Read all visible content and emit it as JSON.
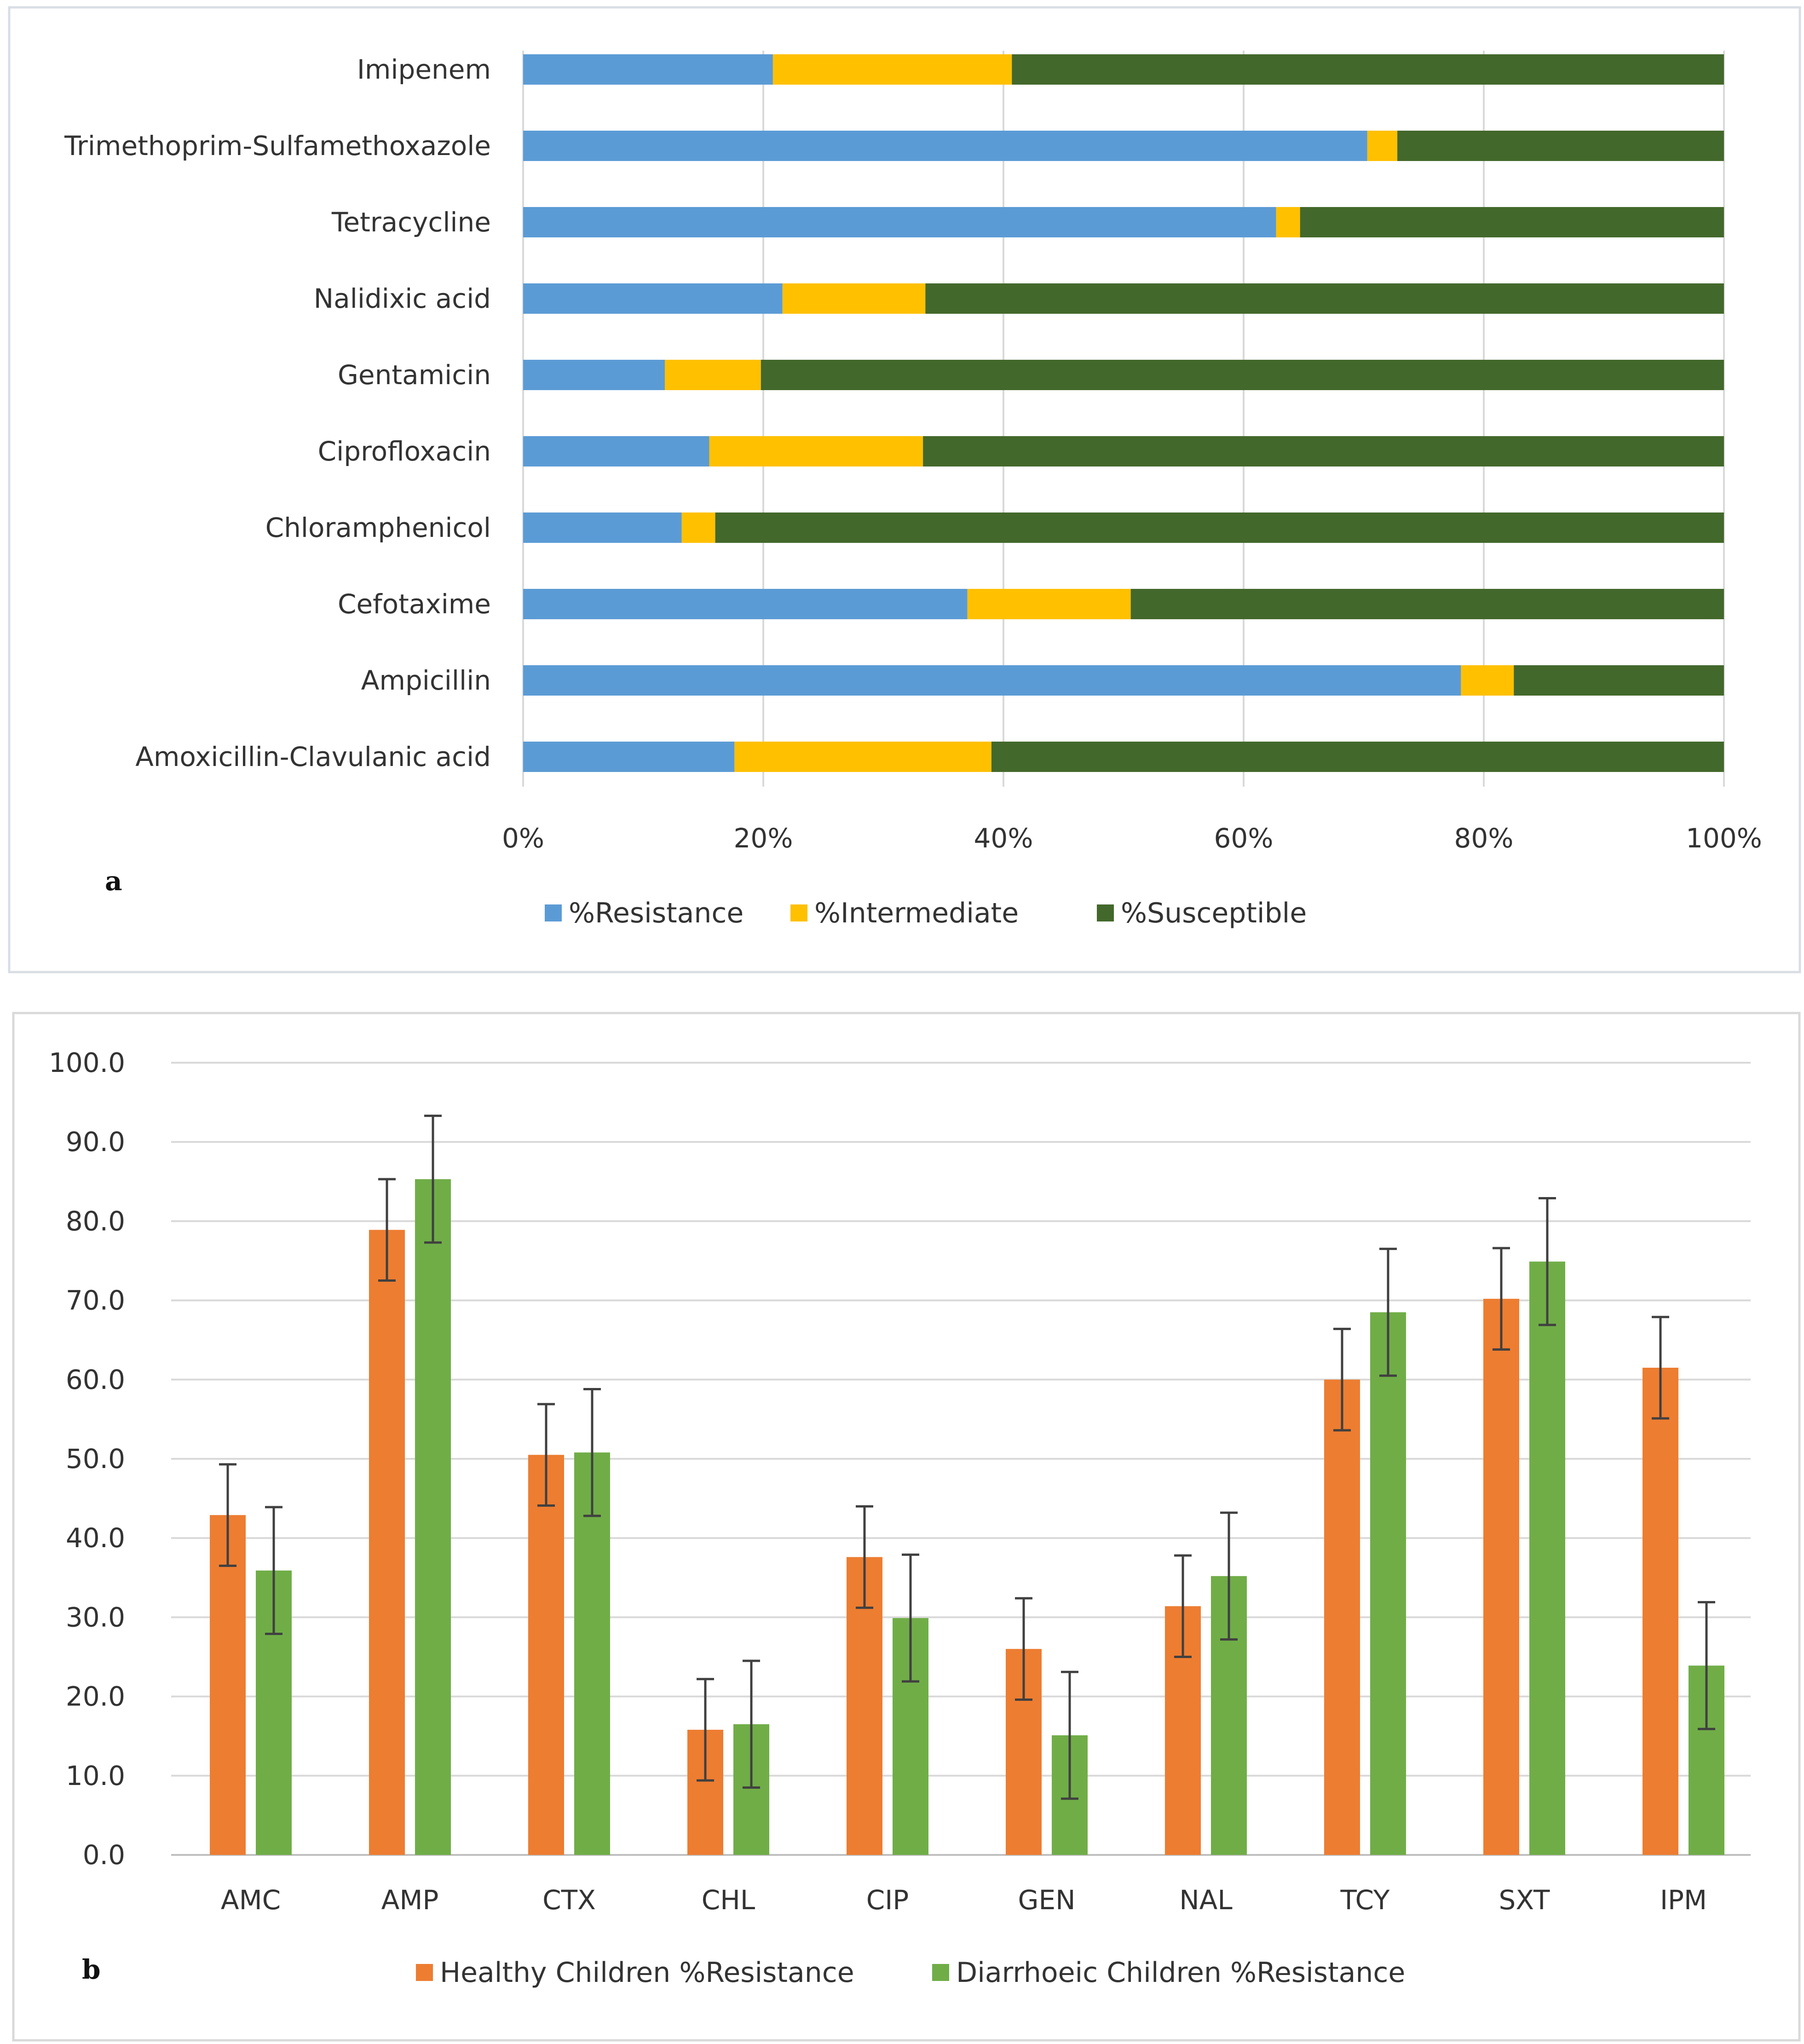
{
  "chart_data": [
    {
      "type": "bar",
      "orientation": "horizontal",
      "stacked": "percent",
      "panel_label": "a",
      "categories": [
        "Imipenem",
        "Trimethoprim-Sulfamethoxazole",
        "Tetracycline",
        "Nalidixic acid",
        "Gentamicin",
        "Ciprofloxacin",
        "Chloramphenicol",
        "Cefotaxime",
        "Ampicillin",
        "Amoxicillin-Clavulanic acid"
      ],
      "series": [
        {
          "name": "%Resistance",
          "color": "#5B9BD5",
          "values": [
            20.8,
            70.3,
            62.7,
            21.6,
            11.8,
            15.5,
            13.2,
            37.0,
            78.1,
            17.6
          ]
        },
        {
          "name": "%Intermediate",
          "color": "#FFC000",
          "values": [
            19.9,
            2.5,
            2.0,
            11.9,
            8.0,
            17.8,
            2.8,
            13.6,
            4.4,
            21.4
          ]
        },
        {
          "name": "%Susceptible",
          "color": "#43682B",
          "values": [
            59.3,
            27.2,
            35.3,
            66.5,
            80.2,
            66.7,
            84.0,
            49.4,
            17.5,
            61.0
          ]
        }
      ],
      "xlim": [
        0,
        100
      ],
      "x_ticks": [
        "0%",
        "20%",
        "40%",
        "60%",
        "80%",
        "100%"
      ],
      "grid": true,
      "legend": "bottom"
    },
    {
      "type": "bar",
      "orientation": "vertical",
      "panel_label": "b",
      "categories": [
        "AMC",
        "AMP",
        "CTX",
        "CHL",
        "CIP",
        "GEN",
        "NAL",
        "TCY",
        "SXT",
        "IPM"
      ],
      "series": [
        {
          "name": "Healthy Children %Resistance",
          "color": "#ED7D31",
          "values": [
            42.9,
            78.9,
            50.5,
            15.8,
            37.6,
            26.0,
            31.4,
            60.0,
            70.2,
            61.5
          ],
          "error": [
            6.4,
            6.4,
            6.4,
            6.4,
            6.4,
            6.4,
            6.4,
            6.4,
            6.4,
            6.4
          ]
        },
        {
          "name": "Diarrhoeic Children %Resistance",
          "color": "#70AD47",
          "values": [
            35.9,
            85.3,
            50.8,
            16.5,
            29.9,
            15.1,
            35.2,
            68.5,
            74.9,
            23.9
          ],
          "error": [
            8.0,
            8.0,
            8.0,
            8.0,
            8.0,
            8.0,
            8.0,
            8.0,
            8.0,
            8.0
          ]
        }
      ],
      "ylim": [
        0,
        100
      ],
      "y_ticks": [
        "0.0",
        "10.0",
        "20.0",
        "30.0",
        "40.0",
        "50.0",
        "60.0",
        "70.0",
        "80.0",
        "90.0",
        "100.0"
      ],
      "grid": true,
      "legend": "bottom"
    }
  ]
}
